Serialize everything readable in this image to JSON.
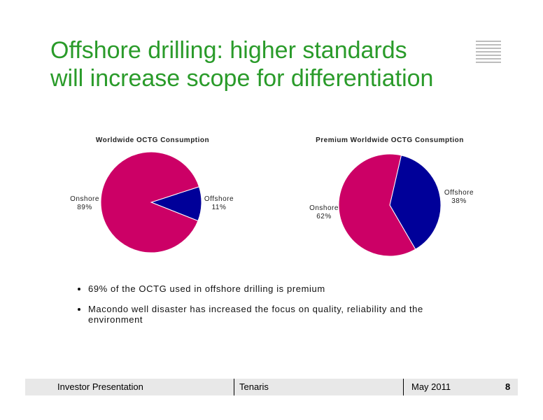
{
  "title_lines": [
    "Offshore drilling: higher standards",
    "will increase scope for differentiation"
  ],
  "chart_data": [
    {
      "type": "pie",
      "title": "Worldwide OCTG Consumption",
      "categories": [
        "Onshore",
        "Offshore"
      ],
      "values": [
        89,
        11
      ],
      "value_labels": [
        "89%",
        "11%"
      ],
      "colors": [
        "#cc0066",
        "#000099"
      ]
    },
    {
      "type": "pie",
      "title": "Premium Worldwide OCTG Consumption",
      "categories": [
        "Onshore",
        "Offshore"
      ],
      "values": [
        62,
        38
      ],
      "value_labels": [
        "62%",
        "38%"
      ],
      "colors": [
        "#cc0066",
        "#000099"
      ]
    }
  ],
  "bullets": [
    "69% of the OCTG used in offshore drilling is premium",
    "Macondo well disaster has increased the focus on quality, reliability and the environment"
  ],
  "footer": {
    "left": "Investor  Presentation",
    "center": "Tenaris",
    "date": "May 2011",
    "page": "8"
  }
}
